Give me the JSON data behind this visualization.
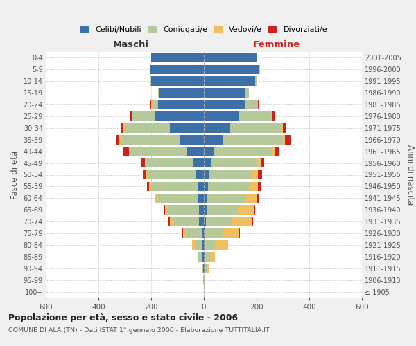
{
  "age_groups": [
    "100+",
    "95-99",
    "90-94",
    "85-89",
    "80-84",
    "75-79",
    "70-74",
    "65-69",
    "60-64",
    "55-59",
    "50-54",
    "45-49",
    "40-44",
    "35-39",
    "30-34",
    "25-29",
    "20-24",
    "15-19",
    "10-14",
    "5-9",
    "0-4"
  ],
  "birth_years": [
    "≤ 1905",
    "1906-1910",
    "1911-1915",
    "1916-1920",
    "1921-1925",
    "1926-1930",
    "1931-1935",
    "1936-1940",
    "1941-1945",
    "1946-1950",
    "1951-1955",
    "1956-1960",
    "1961-1965",
    "1966-1970",
    "1971-1975",
    "1976-1980",
    "1981-1985",
    "1986-1990",
    "1991-1995",
    "1996-2000",
    "2001-2005"
  ],
  "male": {
    "celibi": [
      0,
      1,
      2,
      5,
      5,
      8,
      18,
      18,
      20,
      22,
      30,
      40,
      65,
      90,
      130,
      185,
      175,
      170,
      200,
      205,
      200
    ],
    "coniugati": [
      0,
      2,
      5,
      15,
      30,
      60,
      95,
      120,
      155,
      175,
      185,
      180,
      215,
      225,
      170,
      85,
      20,
      5,
      3,
      1,
      0
    ],
    "vedovi": [
      0,
      0,
      2,
      5,
      10,
      10,
      15,
      10,
      10,
      10,
      5,
      5,
      5,
      5,
      5,
      5,
      5,
      0,
      0,
      0,
      0
    ],
    "divorziati": [
      0,
      0,
      0,
      0,
      0,
      3,
      5,
      3,
      3,
      10,
      12,
      12,
      20,
      12,
      10,
      5,
      3,
      0,
      0,
      0,
      0
    ]
  },
  "female": {
    "nubili": [
      0,
      1,
      3,
      5,
      3,
      5,
      8,
      10,
      12,
      15,
      20,
      30,
      40,
      70,
      100,
      135,
      155,
      155,
      195,
      210,
      200
    ],
    "coniugate": [
      0,
      3,
      8,
      18,
      40,
      65,
      100,
      120,
      145,
      160,
      165,
      170,
      220,
      230,
      195,
      120,
      45,
      15,
      5,
      2,
      0
    ],
    "vedove": [
      0,
      2,
      8,
      20,
      50,
      65,
      75,
      60,
      45,
      30,
      20,
      15,
      10,
      8,
      5,
      5,
      5,
      2,
      0,
      0,
      0
    ],
    "divorziate": [
      0,
      0,
      0,
      0,
      0,
      3,
      5,
      5,
      5,
      12,
      15,
      15,
      18,
      20,
      12,
      8,
      3,
      0,
      0,
      0,
      0
    ]
  },
  "colors": {
    "celibi": "#3d6fa8",
    "coniugati": "#b5c99a",
    "vedovi": "#f0c060",
    "divorziati": "#cc2222"
  },
  "xlim": 600,
  "title": "Popolazione per età, sesso e stato civile - 2006",
  "subtitle": "COMUNE DI ALA (TN) - Dati ISTAT 1° gennaio 2006 - Elaborazione TUTTITALIA.IT",
  "ylabel_left": "Fasce di età",
  "ylabel_right": "Anni di nascita",
  "xlabel_left": "Maschi",
  "xlabel_right": "Femmine",
  "bg_color": "#f0f0f0",
  "plot_bg": "#ffffff"
}
